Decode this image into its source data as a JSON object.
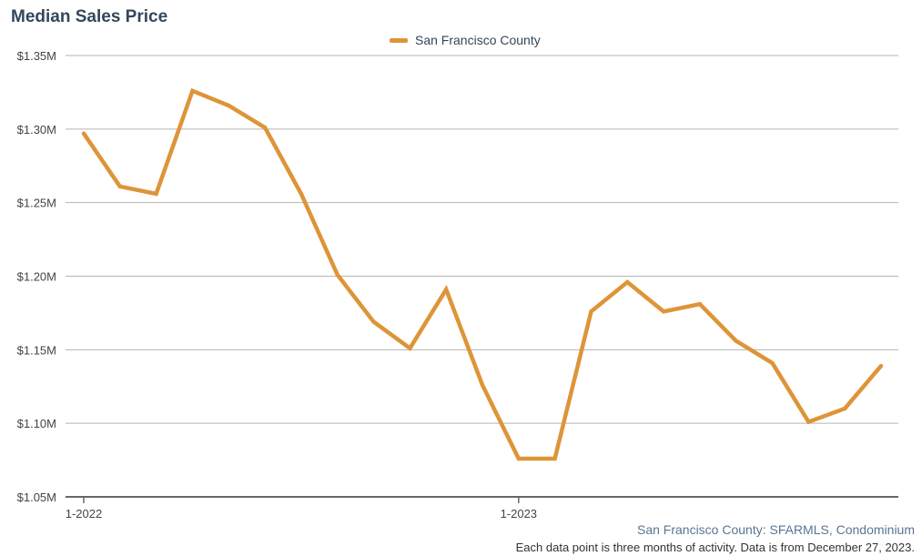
{
  "header": {
    "title": "Median Sales Price"
  },
  "legend": {
    "label": "San Francisco County"
  },
  "footer": {
    "source": "San Francisco County: SFARMLS, Condominium",
    "note": "Each data point is three months of activity. Data is from December 27, 2023."
  },
  "colors": {
    "series": "#dd9538",
    "title": "#33475b",
    "source_text": "#5a7592",
    "grid": "#b4b4b4",
    "axis": "#666666"
  },
  "chart_data": {
    "type": "line",
    "title": "Median Sales Price",
    "xlabel": "",
    "ylabel": "",
    "ylim": [
      1.05,
      1.35
    ],
    "y_ticks": [
      {
        "value": 1.35,
        "label": "$1.35M"
      },
      {
        "value": 1.3,
        "label": "$1.30M"
      },
      {
        "value": 1.25,
        "label": "$1.25M"
      },
      {
        "value": 1.2,
        "label": "$1.20M"
      },
      {
        "value": 1.15,
        "label": "$1.15M"
      },
      {
        "value": 1.1,
        "label": "$1.10M"
      },
      {
        "value": 1.05,
        "label": "$1.05M"
      }
    ],
    "x_ticks": [
      {
        "index": 0,
        "label": "1-2022"
      },
      {
        "index": 12,
        "label": "1-2023"
      }
    ],
    "grid": true,
    "legend_position": "top-center",
    "series": [
      {
        "name": "San Francisco County",
        "values": [
          1.297,
          1.261,
          1.256,
          1.326,
          1.316,
          1.301,
          1.256,
          1.201,
          1.169,
          1.151,
          1.191,
          1.126,
          1.076,
          1.076,
          1.176,
          1.196,
          1.176,
          1.181,
          1.156,
          1.141,
          1.101,
          1.11,
          1.139
        ]
      }
    ]
  }
}
